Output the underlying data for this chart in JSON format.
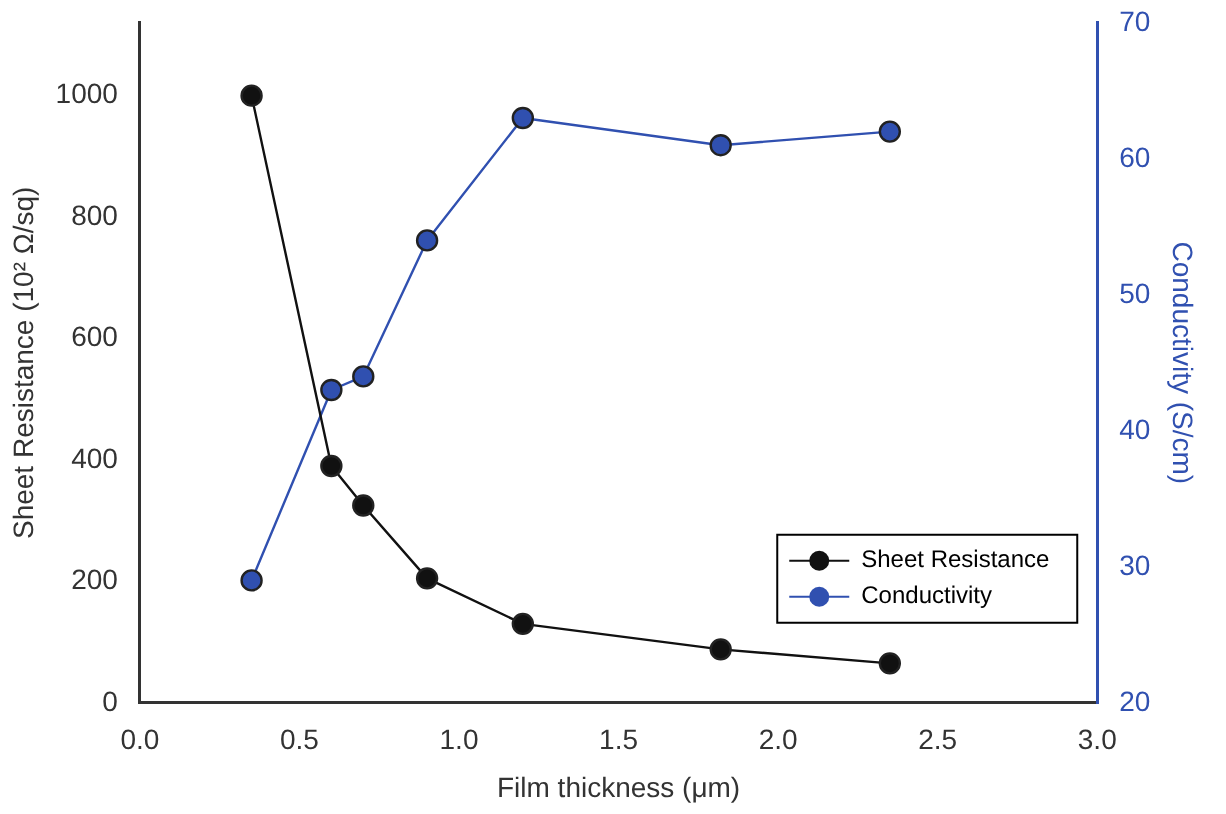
{
  "chart_data": {
    "type": "line",
    "xlabel": "Film thickness (μm)",
    "ylabel": "Sheet Resistance (10² Ω/sq)",
    "y2label": "Conductivity (S/cm)",
    "x": [
      0.35,
      0.6,
      0.7,
      0.9,
      1.2,
      1.82,
      2.35
    ],
    "series": [
      {
        "name": "Sheet Resistance",
        "color": "#111111",
        "values": [
          1000,
          390,
          325,
          205,
          130,
          88,
          65
        ]
      },
      {
        "name": "Conductivity",
        "color": "#3050b0",
        "axis": "y2",
        "values": [
          29,
          43,
          44,
          54,
          63,
          61,
          62
        ]
      }
    ],
    "xlim": [
      0,
      3
    ],
    "xticks": [
      {
        "value": 0,
        "label": "0.0"
      },
      {
        "value": 0.5,
        "label": "0.5"
      },
      {
        "value": 1,
        "label": "1.0"
      },
      {
        "value": 1.5,
        "label": "1.5"
      },
      {
        "value": 2,
        "label": "2.0"
      },
      {
        "value": 2.5,
        "label": "2.5"
      },
      {
        "value": 3,
        "label": "3.0"
      }
    ],
    "ylim": [
      0,
      1120
    ],
    "yticks": [
      0,
      200,
      400,
      600,
      800,
      1000
    ],
    "y2lim": [
      20,
      70
    ],
    "y2ticks": [
      20,
      30,
      40,
      50,
      60,
      70
    ],
    "grid": false,
    "legend": "bottom right",
    "marker": "circle",
    "line_style": "solid"
  }
}
